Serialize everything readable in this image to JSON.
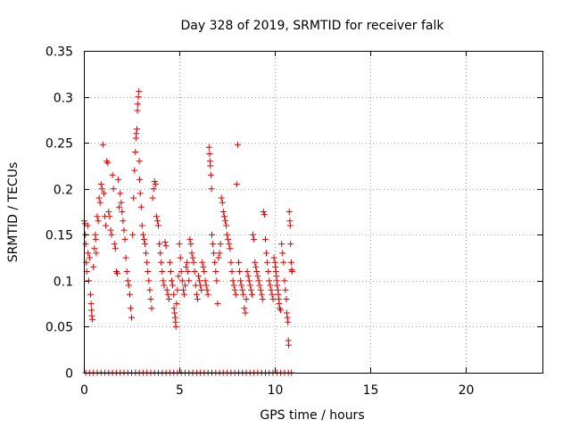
{
  "chart_data": {
    "type": "scatter",
    "title": "Day 328 of 2019, SRMTID for receiver falk",
    "xlabel": "GPS time / hours",
    "ylabel": "SRMTID / TECUs",
    "xlim": [
      0,
      24
    ],
    "ylim": [
      0,
      0.35
    ],
    "xticks": [
      0,
      5,
      10,
      15,
      20
    ],
    "xtick_labels": [
      "0",
      "5",
      "10",
      "15",
      "20"
    ],
    "yticks": [
      0,
      0.05,
      0.1,
      0.15,
      0.2,
      0.25,
      0.3,
      0.35
    ],
    "ytick_labels": [
      "0",
      "0.05",
      "0.1",
      "0.15",
      "0.2",
      "0.25",
      "0.3",
      "0.35"
    ],
    "grid": true,
    "legend": "none",
    "marker": "plus",
    "color": "#dd0000",
    "series": [
      {
        "points": [
          [
            0.02,
            0.165
          ],
          [
            0.05,
            0.162
          ],
          [
            0.08,
            0.15
          ],
          [
            0.1,
            0.14
          ],
          [
            0.12,
            0.12
          ],
          [
            0.15,
            0.11
          ],
          [
            0.2,
            0.16
          ],
          [
            0.22,
            0.13
          ],
          [
            0.25,
            0.1
          ],
          [
            0.3,
            0.125
          ],
          [
            0.35,
            0.085
          ],
          [
            0.38,
            0.075
          ],
          [
            0.4,
            0.068
          ],
          [
            0.42,
            0.062
          ],
          [
            0.45,
            0.058
          ],
          [
            0.5,
            0.115
          ],
          [
            0.55,
            0.135
          ],
          [
            0.6,
            0.15
          ],
          [
            0.62,
            0.145
          ],
          [
            0.65,
            0.13
          ],
          [
            0.7,
            0.17
          ],
          [
            0.75,
            0.165
          ],
          [
            0.8,
            0.19
          ],
          [
            0.85,
            0.185
          ],
          [
            0.9,
            0.205
          ],
          [
            0.95,
            0.2
          ],
          [
            1.0,
            0.248
          ],
          [
            1.05,
            0.195
          ],
          [
            1.1,
            0.17
          ],
          [
            1.15,
            0.16
          ],
          [
            1.2,
            0.23
          ],
          [
            1.25,
            0.228
          ],
          [
            1.3,
            0.175
          ],
          [
            1.35,
            0.17
          ],
          [
            1.4,
            0.155
          ],
          [
            1.45,
            0.15
          ],
          [
            1.5,
            0.215
          ],
          [
            1.55,
            0.2
          ],
          [
            1.6,
            0.14
          ],
          [
            1.65,
            0.135
          ],
          [
            1.7,
            0.11
          ],
          [
            1.75,
            0.108
          ],
          [
            1.8,
            0.21
          ],
          [
            1.85,
            0.18
          ],
          [
            1.9,
            0.195
          ],
          [
            1.95,
            0.185
          ],
          [
            2.0,
            0.175
          ],
          [
            2.05,
            0.165
          ],
          [
            2.1,
            0.155
          ],
          [
            2.15,
            0.145
          ],
          [
            2.2,
            0.125
          ],
          [
            2.25,
            0.11
          ],
          [
            2.3,
            0.1
          ],
          [
            2.35,
            0.095
          ],
          [
            2.4,
            0.085
          ],
          [
            2.45,
            0.07
          ],
          [
            2.5,
            0.06
          ],
          [
            2.55,
            0.15
          ],
          [
            2.6,
            0.19
          ],
          [
            2.65,
            0.22
          ],
          [
            2.7,
            0.24
          ],
          [
            2.72,
            0.255
          ],
          [
            2.75,
            0.26
          ],
          [
            2.78,
            0.265
          ],
          [
            2.8,
            0.285
          ],
          [
            2.82,
            0.292
          ],
          [
            2.85,
            0.3
          ],
          [
            2.88,
            0.306
          ],
          [
            2.9,
            0.23
          ],
          [
            2.92,
            0.21
          ],
          [
            2.95,
            0.195
          ],
          [
            3.0,
            0.18
          ],
          [
            3.05,
            0.16
          ],
          [
            3.1,
            0.15
          ],
          [
            3.15,
            0.145
          ],
          [
            3.2,
            0.14
          ],
          [
            3.25,
            0.13
          ],
          [
            3.3,
            0.12
          ],
          [
            3.35,
            0.11
          ],
          [
            3.4,
            0.1
          ],
          [
            3.45,
            0.09
          ],
          [
            3.5,
            0.08
          ],
          [
            3.55,
            0.07
          ],
          [
            3.6,
            0.19
          ],
          [
            3.65,
            0.2
          ],
          [
            3.7,
            0.208
          ],
          [
            3.75,
            0.205
          ],
          [
            3.8,
            0.17
          ],
          [
            3.85,
            0.165
          ],
          [
            3.9,
            0.16
          ],
          [
            3.95,
            0.14
          ],
          [
            4.0,
            0.13
          ],
          [
            4.05,
            0.12
          ],
          [
            4.1,
            0.11
          ],
          [
            4.15,
            0.1
          ],
          [
            4.2,
            0.095
          ],
          [
            4.25,
            0.142
          ],
          [
            4.3,
            0.138
          ],
          [
            4.35,
            0.09
          ],
          [
            4.4,
            0.085
          ],
          [
            4.45,
            0.08
          ],
          [
            4.5,
            0.12
          ],
          [
            4.55,
            0.11
          ],
          [
            4.6,
            0.1
          ],
          [
            4.65,
            0.095
          ],
          [
            4.7,
            0.085
          ],
          [
            4.72,
            0.07
          ],
          [
            4.75,
            0.065
          ],
          [
            4.78,
            0.06
          ],
          [
            4.8,
            0.055
          ],
          [
            4.82,
            0.05
          ],
          [
            4.85,
            0.075
          ],
          [
            4.9,
            0.09
          ],
          [
            4.95,
            0.105
          ],
          [
            5.0,
            0.14
          ],
          [
            5.05,
            0.125
          ],
          [
            5.1,
            0.11
          ],
          [
            5.15,
            0.1
          ],
          [
            5.2,
            0.09
          ],
          [
            5.25,
            0.085
          ],
          [
            5.3,
            0.095
          ],
          [
            5.35,
            0.115
          ],
          [
            5.4,
            0.12
          ],
          [
            5.45,
            0.11
          ],
          [
            5.5,
            0.1
          ],
          [
            5.55,
            0.145
          ],
          [
            5.6,
            0.14
          ],
          [
            5.65,
            0.13
          ],
          [
            5.7,
            0.125
          ],
          [
            5.75,
            0.12
          ],
          [
            5.8,
            0.11
          ],
          [
            5.85,
            0.095
          ],
          [
            5.9,
            0.085
          ],
          [
            5.95,
            0.08
          ],
          [
            6.0,
            0.105
          ],
          [
            6.05,
            0.1
          ],
          [
            6.1,
            0.095
          ],
          [
            6.15,
            0.09
          ],
          [
            6.2,
            0.12
          ],
          [
            6.25,
            0.115
          ],
          [
            6.3,
            0.11
          ],
          [
            6.35,
            0.1
          ],
          [
            6.4,
            0.095
          ],
          [
            6.45,
            0.09
          ],
          [
            6.5,
            0.085
          ],
          [
            6.55,
            0.245
          ],
          [
            6.58,
            0.238
          ],
          [
            6.6,
            0.23
          ],
          [
            6.62,
            0.225
          ],
          [
            6.65,
            0.215
          ],
          [
            6.68,
            0.2
          ],
          [
            6.7,
            0.15
          ],
          [
            6.75,
            0.14
          ],
          [
            6.8,
            0.13
          ],
          [
            6.85,
            0.12
          ],
          [
            6.9,
            0.11
          ],
          [
            6.95,
            0.1
          ],
          [
            7.0,
            0.075
          ],
          [
            7.05,
            0.125
          ],
          [
            7.1,
            0.13
          ],
          [
            7.15,
            0.14
          ],
          [
            7.2,
            0.19
          ],
          [
            7.25,
            0.185
          ],
          [
            7.3,
            0.175
          ],
          [
            7.35,
            0.17
          ],
          [
            7.4,
            0.165
          ],
          [
            7.45,
            0.16
          ],
          [
            7.5,
            0.15
          ],
          [
            7.55,
            0.145
          ],
          [
            7.6,
            0.14
          ],
          [
            7.65,
            0.135
          ],
          [
            7.7,
            0.12
          ],
          [
            7.75,
            0.11
          ],
          [
            7.8,
            0.1
          ],
          [
            7.85,
            0.095
          ],
          [
            7.9,
            0.09
          ],
          [
            7.95,
            0.085
          ],
          [
            8.0,
            0.205
          ],
          [
            8.05,
            0.248
          ],
          [
            8.1,
            0.12
          ],
          [
            8.15,
            0.11
          ],
          [
            8.2,
            0.1
          ],
          [
            8.25,
            0.095
          ],
          [
            8.3,
            0.09
          ],
          [
            8.35,
            0.085
          ],
          [
            8.4,
            0.07
          ],
          [
            8.45,
            0.065
          ],
          [
            8.5,
            0.08
          ],
          [
            8.55,
            0.11
          ],
          [
            8.6,
            0.105
          ],
          [
            8.65,
            0.1
          ],
          [
            8.7,
            0.095
          ],
          [
            8.75,
            0.09
          ],
          [
            8.8,
            0.085
          ],
          [
            8.85,
            0.15
          ],
          [
            8.9,
            0.145
          ],
          [
            8.95,
            0.12
          ],
          [
            9.0,
            0.115
          ],
          [
            9.05,
            0.11
          ],
          [
            9.1,
            0.105
          ],
          [
            9.15,
            0.1
          ],
          [
            9.2,
            0.095
          ],
          [
            9.25,
            0.09
          ],
          [
            9.3,
            0.085
          ],
          [
            9.35,
            0.08
          ],
          [
            9.4,
            0.175
          ],
          [
            9.45,
            0.172
          ],
          [
            9.5,
            0.145
          ],
          [
            9.55,
            0.13
          ],
          [
            9.6,
            0.12
          ],
          [
            9.65,
            0.11
          ],
          [
            9.7,
            0.1
          ],
          [
            9.75,
            0.095
          ],
          [
            9.8,
            0.09
          ],
          [
            9.85,
            0.085
          ],
          [
            9.9,
            0.08
          ],
          [
            9.95,
            0.125
          ],
          [
            10.0,
            0.12
          ],
          [
            10.02,
            0.115
          ],
          [
            10.05,
            0.11
          ],
          [
            10.08,
            0.105
          ],
          [
            10.1,
            0.1
          ],
          [
            10.12,
            0.095
          ],
          [
            10.15,
            0.09
          ],
          [
            10.18,
            0.085
          ],
          [
            10.2,
            0.08
          ],
          [
            10.22,
            0.075
          ],
          [
            10.25,
            0.07
          ],
          [
            10.3,
            0.068
          ],
          [
            10.35,
            0.14
          ],
          [
            10.4,
            0.13
          ],
          [
            10.45,
            0.12
          ],
          [
            10.5,
            0.1
          ],
          [
            10.55,
            0.09
          ],
          [
            10.6,
            0.08
          ],
          [
            10.62,
            0.065
          ],
          [
            10.65,
            0.06
          ],
          [
            10.68,
            0.055
          ],
          [
            10.7,
            0.035
          ],
          [
            10.72,
            0.03
          ],
          [
            10.75,
            0.175
          ],
          [
            10.78,
            0.165
          ],
          [
            10.8,
            0.16
          ],
          [
            10.82,
            0.14
          ],
          [
            10.85,
            0.12
          ],
          [
            10.88,
            0.112
          ],
          [
            10.9,
            0.11
          ],
          [
            0.1,
            0.0
          ],
          [
            0.3,
            0.0
          ],
          [
            0.5,
            0.0
          ],
          [
            0.7,
            0.0
          ],
          [
            0.9,
            0.0
          ],
          [
            1.1,
            0.0
          ],
          [
            1.3,
            0.0
          ],
          [
            1.5,
            0.0
          ],
          [
            1.7,
            0.0
          ],
          [
            1.9,
            0.0
          ],
          [
            2.1,
            0.0
          ],
          [
            2.3,
            0.0
          ],
          [
            2.5,
            0.0
          ],
          [
            2.7,
            0.0
          ],
          [
            2.9,
            0.0
          ],
          [
            3.1,
            0.0
          ],
          [
            3.3,
            0.0
          ],
          [
            3.5,
            0.0
          ],
          [
            3.7,
            0.0
          ],
          [
            3.9,
            0.0
          ],
          [
            4.1,
            0.0
          ],
          [
            4.3,
            0.0
          ],
          [
            4.5,
            0.0
          ],
          [
            4.7,
            0.0
          ],
          [
            4.9,
            0.0
          ],
          [
            5.1,
            0.0
          ],
          [
            5.3,
            0.0
          ],
          [
            5.5,
            0.0
          ],
          [
            5.7,
            0.0
          ],
          [
            5.9,
            0.0
          ],
          [
            6.1,
            0.0
          ],
          [
            6.3,
            0.0
          ],
          [
            6.5,
            0.0
          ],
          [
            6.7,
            0.0
          ],
          [
            6.9,
            0.0
          ],
          [
            7.1,
            0.0
          ],
          [
            7.3,
            0.0
          ],
          [
            7.5,
            0.0
          ],
          [
            7.7,
            0.0
          ],
          [
            7.9,
            0.0
          ],
          [
            8.1,
            0.0
          ],
          [
            8.3,
            0.0
          ],
          [
            8.5,
            0.0
          ],
          [
            8.7,
            0.0
          ],
          [
            8.9,
            0.0
          ],
          [
            9.1,
            0.0
          ],
          [
            9.3,
            0.0
          ],
          [
            9.5,
            0.0
          ],
          [
            9.7,
            0.0
          ],
          [
            9.9,
            0.0
          ],
          [
            10.1,
            0.0
          ],
          [
            10.3,
            0.0
          ],
          [
            10.5,
            0.0
          ],
          [
            10.7,
            0.0
          ],
          [
            10.85,
            0.0
          ]
        ]
      }
    ]
  }
}
